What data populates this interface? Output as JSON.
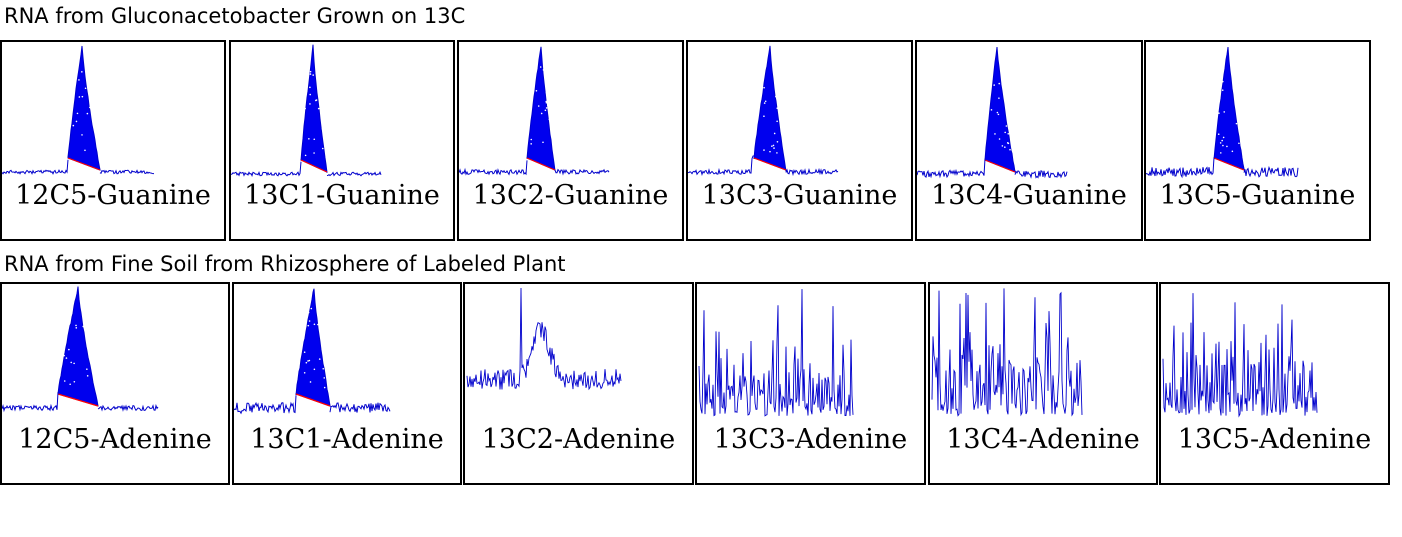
{
  "chart_data": [
    {
      "type": "area",
      "title": "RNA from Gluconacetobacter Grown on 13C",
      "trace_color": "#0000cc",
      "fill_color": "#0000ee",
      "baseline_color": "#ff0000",
      "panels": [
        {
          "label": "12C5-Guanine",
          "shape": "peak",
          "peak_height": 1.0,
          "noise": 0.02
        },
        {
          "label": "13C1-Guanine",
          "shape": "peak",
          "peak_height": 1.0,
          "noise": 0.02
        },
        {
          "label": "13C2-Guanine",
          "shape": "peak",
          "peak_height": 1.0,
          "noise": 0.03
        },
        {
          "label": "13C3-Guanine",
          "shape": "peak",
          "peak_height": 1.0,
          "noise": 0.03
        },
        {
          "label": "13C4-Guanine",
          "shape": "peak",
          "peak_height": 1.0,
          "noise": 0.05
        },
        {
          "label": "13C5-Guanine",
          "shape": "peak",
          "peak_height": 1.0,
          "noise": 0.07
        }
      ]
    },
    {
      "type": "area",
      "title": "RNA from Fine Soil from Rhizosphere of Labeled Plant",
      "trace_color": "#0000cc",
      "fill_color": "#0000ee",
      "baseline_color": "#ff0000",
      "panels": [
        {
          "label": "12C5-Adenine",
          "shape": "peak",
          "peak_height": 1.0,
          "noise": 0.03
        },
        {
          "label": "13C1-Adenine",
          "shape": "peak",
          "peak_height": 0.95,
          "noise": 0.08
        },
        {
          "label": "13C2-Adenine",
          "shape": "noisy",
          "peak_height": 0.6,
          "noise": 0.35
        },
        {
          "label": "13C3-Adenine",
          "shape": "noise",
          "peak_height": 0.0,
          "noise": 0.9
        },
        {
          "label": "13C4-Adenine",
          "shape": "noise",
          "peak_height": 0.0,
          "noise": 0.9
        },
        {
          "label": "13C5-Adenine",
          "shape": "noise",
          "peak_height": 0.0,
          "noise": 0.9
        }
      ]
    }
  ]
}
